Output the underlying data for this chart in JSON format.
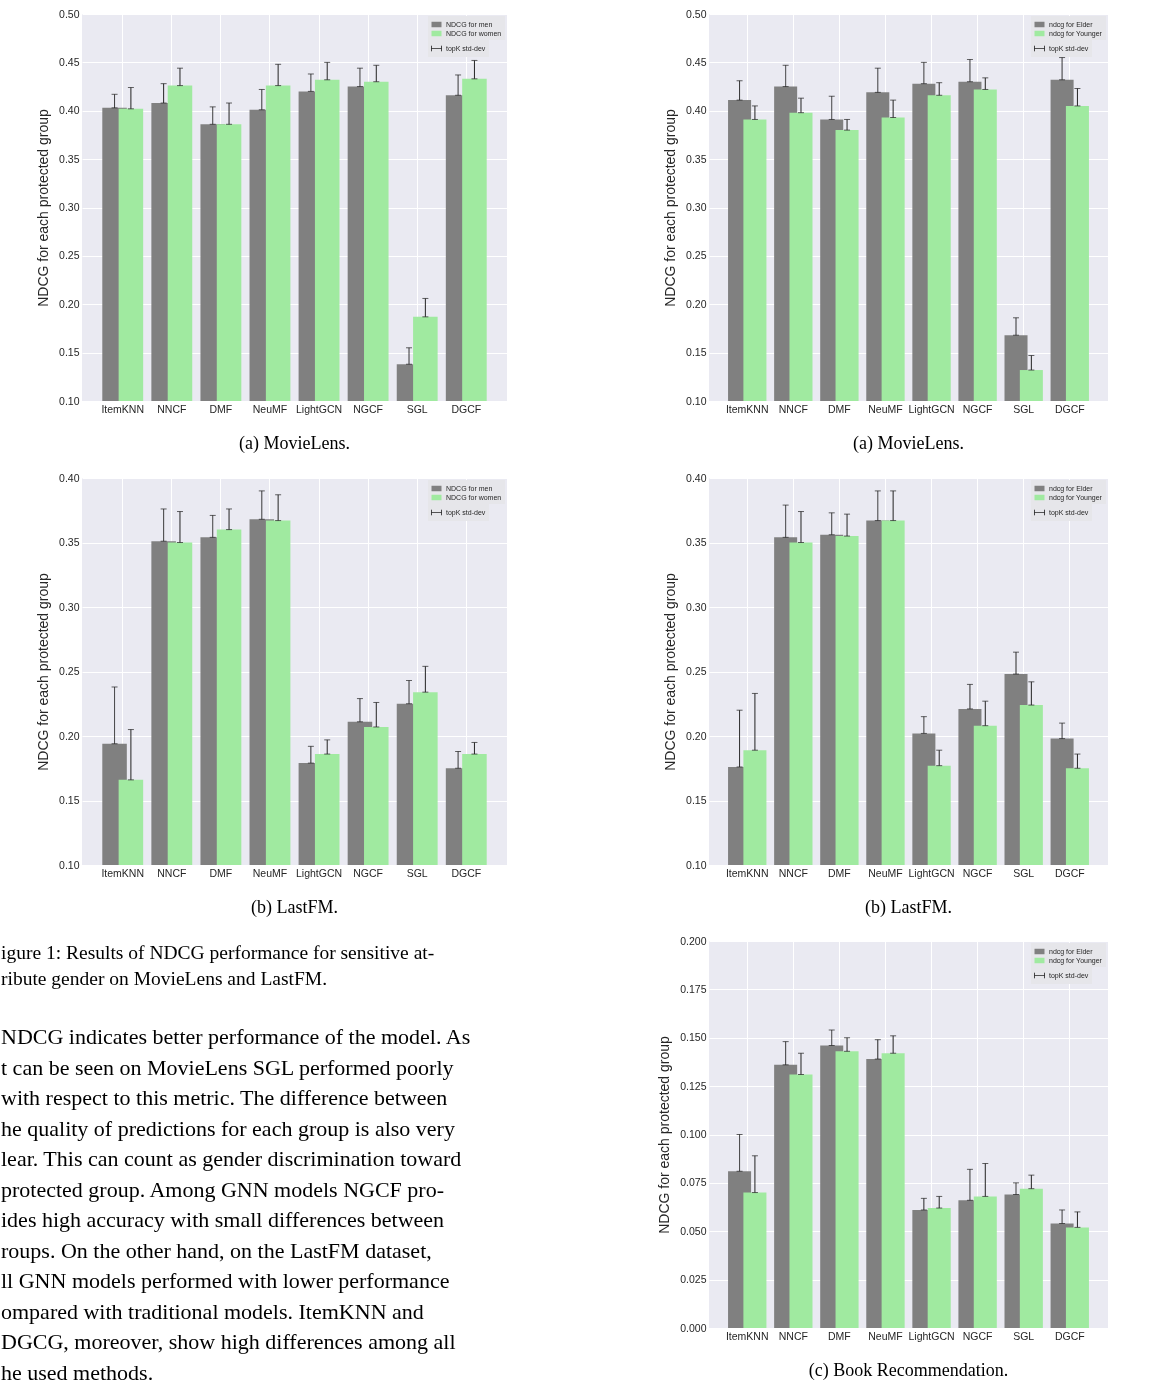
{
  "chart_data": [
    {
      "type": "bar",
      "title": "(a) MovieLens.",
      "ylabel": "NDCG for each protected group",
      "categories": [
        "ItemKNN",
        "NNCF",
        "DMF",
        "NeuMF",
        "LightGCN",
        "NGCF",
        "SGL",
        "DGCF"
      ],
      "series": [
        {
          "name": "NDCG for men",
          "color": "#808080",
          "values": [
            0.403,
            0.408,
            0.386,
            0.401,
            0.42,
            0.425,
            0.138,
            0.416
          ],
          "errors": [
            [
              0.403,
              0.417
            ],
            [
              0.408,
              0.428
            ],
            [
              0.386,
              0.404
            ],
            [
              0.401,
              0.422
            ],
            [
              0.42,
              0.438
            ],
            [
              0.425,
              0.444
            ],
            [
              0.138,
              0.155
            ],
            [
              0.416,
              0.437
            ]
          ]
        },
        {
          "name": "NDCG for women",
          "color": "#a0eaa0",
          "values": [
            0.402,
            0.426,
            0.386,
            0.426,
            0.432,
            0.43,
            0.187,
            0.433
          ],
          "errors": [
            [
              0.402,
              0.424
            ],
            [
              0.426,
              0.444
            ],
            [
              0.386,
              0.408
            ],
            [
              0.426,
              0.448
            ],
            [
              0.432,
              0.45
            ],
            [
              0.43,
              0.447
            ],
            [
              0.187,
              0.206
            ],
            [
              0.433,
              0.452
            ]
          ]
        }
      ],
      "ylim": [
        0.1,
        0.5
      ],
      "yticks": [
        {
          "value": 0.1,
          "label": "0.10"
        },
        {
          "value": 0.15,
          "label": "0.15"
        },
        {
          "value": 0.2,
          "label": "0.20"
        },
        {
          "value": 0.25,
          "label": "0.25"
        },
        {
          "value": 0.3,
          "label": "0.30"
        },
        {
          "value": 0.35,
          "label": "0.35"
        },
        {
          "value": 0.4,
          "label": "0.40"
        },
        {
          "value": 0.45,
          "label": "0.45"
        },
        {
          "value": 0.5,
          "label": "0.50"
        }
      ],
      "grid": true,
      "legend": "top right",
      "annotations": [
        "topK std-dev"
      ]
    },
    {
      "type": "bar",
      "title": "(b) LastFM.",
      "ylabel": "NDCG for each protected group",
      "categories": [
        "ItemKNN",
        "NNCF",
        "DMF",
        "NeuMF",
        "LightGCN",
        "NGCF",
        "SGL",
        "DGCF"
      ],
      "series": [
        {
          "name": "NDCG for men",
          "color": "#808080",
          "values": [
            0.194,
            0.351,
            0.354,
            0.368,
            0.179,
            0.211,
            0.225,
            0.175
          ],
          "errors": [
            [
              0.194,
              0.238
            ],
            [
              0.351,
              0.376
            ],
            [
              0.354,
              0.371
            ],
            [
              0.368,
              0.39
            ],
            [
              0.179,
              0.192
            ],
            [
              0.211,
              0.229
            ],
            [
              0.225,
              0.243
            ],
            [
              0.175,
              0.188
            ]
          ]
        },
        {
          "name": "NDCG for women",
          "color": "#a0eaa0",
          "values": [
            0.166,
            0.35,
            0.36,
            0.367,
            0.186,
            0.207,
            0.234,
            0.186
          ],
          "errors": [
            [
              0.166,
              0.205
            ],
            [
              0.35,
              0.374
            ],
            [
              0.36,
              0.376
            ],
            [
              0.367,
              0.387
            ],
            [
              0.186,
              0.197
            ],
            [
              0.207,
              0.226
            ],
            [
              0.234,
              0.254
            ],
            [
              0.186,
              0.195
            ]
          ]
        }
      ],
      "ylim": [
        0.1,
        0.4
      ],
      "yticks": [
        {
          "value": 0.1,
          "label": "0.10"
        },
        {
          "value": 0.15,
          "label": "0.15"
        },
        {
          "value": 0.2,
          "label": "0.20"
        },
        {
          "value": 0.25,
          "label": "0.25"
        },
        {
          "value": 0.3,
          "label": "0.30"
        },
        {
          "value": 0.35,
          "label": "0.35"
        },
        {
          "value": 0.4,
          "label": "0.40"
        }
      ],
      "grid": true,
      "legend": "top right",
      "annotations": [
        "topK std-dev"
      ]
    },
    {
      "type": "other",
      "annotations": [
        "igure 1: Results of NDCG performance for sensitive at-",
        "ribute gender on MovieLens and LastFM.",
        "NDCG indicates better performance of the model. As",
        "t can be seen on MovieLens SGL performed poorly",
        "with respect to this metric. The difference between",
        "he quality of predictions for each group is also very",
        "lear. This can count as gender discrimination toward",
        "protected group. Among GNN models NGCF pro-",
        "ides high accuracy with small differences between",
        "roups. On the other hand, on the LastFM dataset,",
        "ll GNN models performed with lower performance",
        "ompared with traditional models. ItemKNN and",
        "DGCG, moreover, show high differences among all",
        "he used methods."
      ]
    },
    {
      "type": "bar",
      "title": "(a) MovieLens.",
      "ylabel": "NDCG for each protected group",
      "categories": [
        "ItemKNN",
        "NNCF",
        "DMF",
        "NeuMF",
        "LightGCN",
        "NGCF",
        "SGL",
        "DGCF"
      ],
      "series": [
        {
          "name": "ndcg for Elder",
          "color": "#808080",
          "values": [
            0.411,
            0.425,
            0.391,
            0.419,
            0.428,
            0.43,
            0.168,
            0.432
          ],
          "errors": [
            [
              0.411,
              0.431
            ],
            [
              0.425,
              0.447
            ],
            [
              0.391,
              0.415
            ],
            [
              0.419,
              0.444
            ],
            [
              0.428,
              0.45
            ],
            [
              0.43,
              0.453
            ],
            [
              0.168,
              0.186
            ],
            [
              0.432,
              0.455
            ]
          ]
        },
        {
          "name": "ndcg for Younger",
          "color": "#a0eaa0",
          "values": [
            0.391,
            0.398,
            0.38,
            0.393,
            0.416,
            0.422,
            0.132,
            0.405
          ],
          "errors": [
            [
              0.391,
              0.405
            ],
            [
              0.398,
              0.413
            ],
            [
              0.38,
              0.391
            ],
            [
              0.393,
              0.411
            ],
            [
              0.416,
              0.429
            ],
            [
              0.422,
              0.434
            ],
            [
              0.132,
              0.147
            ],
            [
              0.405,
              0.423
            ]
          ]
        }
      ],
      "ylim": [
        0.1,
        0.5
      ],
      "yticks": [
        {
          "value": 0.1,
          "label": "0.10"
        },
        {
          "value": 0.15,
          "label": "0.15"
        },
        {
          "value": 0.2,
          "label": "0.20"
        },
        {
          "value": 0.25,
          "label": "0.25"
        },
        {
          "value": 0.3,
          "label": "0.30"
        },
        {
          "value": 0.35,
          "label": "0.35"
        },
        {
          "value": 0.4,
          "label": "0.40"
        },
        {
          "value": 0.45,
          "label": "0.45"
        },
        {
          "value": 0.5,
          "label": "0.50"
        }
      ],
      "grid": true,
      "legend": "top right",
      "annotations": [
        "topK std-dev"
      ]
    },
    {
      "type": "bar",
      "title": "(b) LastFM.",
      "ylabel": "NDCG for each protected group",
      "categories": [
        "ItemKNN",
        "NNCF",
        "DMF",
        "NeuMF",
        "LightGCN",
        "NGCF",
        "SGL",
        "DGCF"
      ],
      "series": [
        {
          "name": "ndcg for Elder",
          "color": "#808080",
          "values": [
            0.176,
            0.354,
            0.356,
            0.367,
            0.202,
            0.221,
            0.248,
            0.198
          ],
          "errors": [
            [
              0.176,
              0.22
            ],
            [
              0.354,
              0.379
            ],
            [
              0.356,
              0.373
            ],
            [
              0.367,
              0.39
            ],
            [
              0.202,
              0.215
            ],
            [
              0.221,
              0.24
            ],
            [
              0.248,
              0.265
            ],
            [
              0.198,
              0.21
            ]
          ]
        },
        {
          "name": "ndcg for Younger",
          "color": "#a0eaa0",
          "values": [
            0.189,
            0.35,
            0.355,
            0.367,
            0.177,
            0.208,
            0.224,
            0.175
          ],
          "errors": [
            [
              0.189,
              0.233
            ],
            [
              0.35,
              0.374
            ],
            [
              0.355,
              0.372
            ],
            [
              0.367,
              0.39
            ],
            [
              0.177,
              0.189
            ],
            [
              0.208,
              0.227
            ],
            [
              0.224,
              0.242
            ],
            [
              0.175,
              0.186
            ]
          ]
        }
      ],
      "ylim": [
        0.1,
        0.4
      ],
      "yticks": [
        {
          "value": 0.1,
          "label": "0.10"
        },
        {
          "value": 0.15,
          "label": "0.15"
        },
        {
          "value": 0.2,
          "label": "0.20"
        },
        {
          "value": 0.25,
          "label": "0.25"
        },
        {
          "value": 0.3,
          "label": "0.30"
        },
        {
          "value": 0.35,
          "label": "0.35"
        },
        {
          "value": 0.4,
          "label": "0.40"
        }
      ],
      "grid": true,
      "legend": "top right",
      "annotations": [
        "topK std-dev"
      ]
    },
    {
      "type": "bar",
      "title": "(c) Book Recommendation.",
      "ylabel": "NDCG for each protected group",
      "categories": [
        "ItemKNN",
        "NNCF",
        "DMF",
        "NeuMF",
        "LightGCN",
        "NGCF",
        "SGL",
        "DGCF"
      ],
      "series": [
        {
          "name": "ndcg for Elder",
          "color": "#808080",
          "values": [
            0.081,
            0.136,
            0.146,
            0.139,
            0.061,
            0.066,
            0.069,
            0.054
          ],
          "errors": [
            [
              0.081,
              0.1
            ],
            [
              0.136,
              0.148
            ],
            [
              0.146,
              0.154
            ],
            [
              0.139,
              0.149
            ],
            [
              0.061,
              0.067
            ],
            [
              0.066,
              0.082
            ],
            [
              0.069,
              0.075
            ],
            [
              0.054,
              0.061
            ]
          ]
        },
        {
          "name": "ndcg for Younger",
          "color": "#a0eaa0",
          "values": [
            0.07,
            0.131,
            0.143,
            0.142,
            0.062,
            0.068,
            0.072,
            0.052
          ],
          "errors": [
            [
              0.07,
              0.089
            ],
            [
              0.131,
              0.142
            ],
            [
              0.143,
              0.15
            ],
            [
              0.142,
              0.151
            ],
            [
              0.062,
              0.068
            ],
            [
              0.068,
              0.085
            ],
            [
              0.072,
              0.079
            ],
            [
              0.052,
              0.06
            ]
          ]
        }
      ],
      "ylim": [
        0,
        0.2
      ],
      "yticks": [
        {
          "value": 0,
          "label": "0.000"
        },
        {
          "value": 0.025,
          "label": "0.025"
        },
        {
          "value": 0.05,
          "label": "0.050"
        },
        {
          "value": 0.075,
          "label": "0.075"
        },
        {
          "value": 0.1,
          "label": "0.100"
        },
        {
          "value": 0.125,
          "label": "0.125"
        },
        {
          "value": 0.15,
          "label": "0.150"
        },
        {
          "value": 0.175,
          "label": "0.175"
        },
        {
          "value": 0.2,
          "label": "0.200"
        }
      ],
      "grid": true,
      "legend": "top right",
      "annotations": [
        "topK std-dev"
      ]
    }
  ]
}
